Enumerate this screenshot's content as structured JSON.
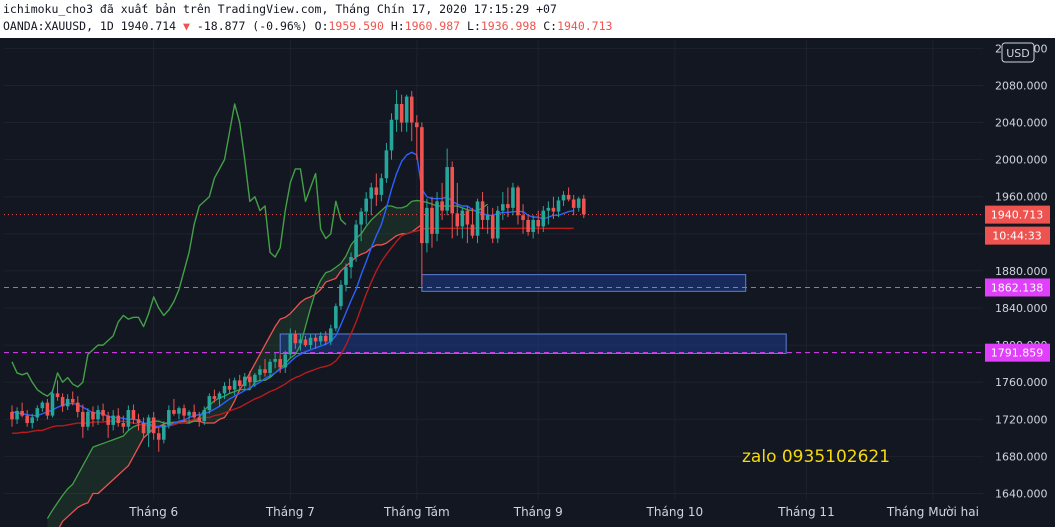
{
  "header": {
    "line1": "ichimoku_cho3 đã xuất bản trên TradingView.com, Tháng Chín 17, 2020 17:15:29 +07",
    "symbol": "OANDA:XAUUSD, 1D",
    "last": "1940.714",
    "change": "-18.877 (-0.96%)",
    "o_label": "O:",
    "o_val": "1959.590",
    "h_label": "H:",
    "h_val": "1960.987",
    "l_label": "L:",
    "l_val": "1936.998",
    "c_label": "C:",
    "c_val": "1940.713"
  },
  "currency_button": "USD",
  "price_tag": "1940.713",
  "countdown_tag": "10:44:33",
  "level_tags": [
    "1862.138",
    "1791.859"
  ],
  "watermark": "zalo 0935102621",
  "colors": {
    "background": "#131722",
    "up": "#26a69a",
    "down": "#ef5350",
    "tenkan": "#2962ff",
    "kijun": "#b71c1c",
    "chikou": "#43a047",
    "span_a": "#43a047",
    "span_b": "#ef5350",
    "zone_fill": "#1e3a8a",
    "zone_border": "#5b7fd6",
    "level_line": "#e040fb"
  },
  "chart_data": {
    "type": "candlestick",
    "symbol": "OANDA:XAUUSD",
    "interval": "1D",
    "y_ticks": [
      "1640.000",
      "1680.000",
      "1720.000",
      "1760.000",
      "1800.000",
      "1840.000",
      "1880.000",
      "1920.000",
      "1960.000",
      "2000.000",
      "2040.000",
      "2080.000",
      "2120.000"
    ],
    "y_range": [
      1633,
      2129
    ],
    "x_labels": [
      "Tháng 6",
      "Tháng 7",
      "Tháng Tám",
      "Tháng 9",
      "Tháng 10",
      "Tháng 11",
      "Tháng Mười hai"
    ],
    "x_label_index": [
      28,
      55,
      80,
      104,
      131,
      157,
      182
    ],
    "candles_ohlc": [
      [
        1728,
        1735,
        1712,
        1720
      ],
      [
        1720,
        1733,
        1715,
        1729
      ],
      [
        1729,
        1738,
        1722,
        1724
      ],
      [
        1724,
        1730,
        1712,
        1716
      ],
      [
        1716,
        1726,
        1710,
        1722
      ],
      [
        1722,
        1735,
        1718,
        1732
      ],
      [
        1732,
        1740,
        1728,
        1738
      ],
      [
        1738,
        1742,
        1720,
        1724
      ],
      [
        1724,
        1752,
        1722,
        1748
      ],
      [
        1748,
        1762,
        1740,
        1744
      ],
      [
        1744,
        1748,
        1728,
        1734
      ],
      [
        1734,
        1747,
        1730,
        1742
      ],
      [
        1742,
        1750,
        1735,
        1738
      ],
      [
        1738,
        1745,
        1722,
        1728
      ],
      [
        1728,
        1736,
        1700,
        1712
      ],
      [
        1712,
        1732,
        1708,
        1728
      ],
      [
        1728,
        1734,
        1712,
        1720
      ],
      [
        1720,
        1735,
        1714,
        1730
      ],
      [
        1730,
        1737,
        1718,
        1724
      ],
      [
        1724,
        1728,
        1700,
        1714
      ],
      [
        1714,
        1730,
        1708,
        1724
      ],
      [
        1724,
        1732,
        1712,
        1716
      ],
      [
        1716,
        1724,
        1705,
        1712
      ],
      [
        1712,
        1735,
        1708,
        1730
      ],
      [
        1730,
        1736,
        1715,
        1720
      ],
      [
        1720,
        1726,
        1708,
        1716
      ],
      [
        1716,
        1722,
        1700,
        1705
      ],
      [
        1705,
        1725,
        1690,
        1722
      ],
      [
        1722,
        1728,
        1698,
        1705
      ],
      [
        1705,
        1712,
        1685,
        1698
      ],
      [
        1698,
        1718,
        1694,
        1714
      ],
      [
        1714,
        1735,
        1710,
        1730
      ],
      [
        1730,
        1742,
        1724,
        1726
      ],
      [
        1726,
        1734,
        1720,
        1732
      ],
      [
        1732,
        1736,
        1718,
        1724
      ],
      [
        1724,
        1730,
        1715,
        1728
      ],
      [
        1728,
        1736,
        1720,
        1722
      ],
      [
        1722,
        1728,
        1712,
        1718
      ],
      [
        1718,
        1734,
        1714,
        1730
      ],
      [
        1730,
        1748,
        1726,
        1745
      ],
      [
        1745,
        1752,
        1738,
        1742
      ],
      [
        1742,
        1750,
        1734,
        1748
      ],
      [
        1748,
        1760,
        1742,
        1756
      ],
      [
        1756,
        1764,
        1748,
        1752
      ],
      [
        1752,
        1765,
        1746,
        1762
      ],
      [
        1762,
        1768,
        1750,
        1756
      ],
      [
        1756,
        1770,
        1752,
        1766
      ],
      [
        1766,
        1772,
        1755,
        1760
      ],
      [
        1760,
        1770,
        1755,
        1768
      ],
      [
        1768,
        1778,
        1762,
        1774
      ],
      [
        1774,
        1785,
        1766,
        1770
      ],
      [
        1770,
        1785,
        1765,
        1782
      ],
      [
        1782,
        1792,
        1775,
        1785
      ],
      [
        1785,
        1790,
        1770,
        1776
      ],
      [
        1776,
        1794,
        1770,
        1790
      ],
      [
        1790,
        1818,
        1786,
        1812
      ],
      [
        1812,
        1816,
        1796,
        1802
      ],
      [
        1802,
        1812,
        1794,
        1806
      ],
      [
        1806,
        1810,
        1798,
        1800
      ],
      [
        1800,
        1812,
        1796,
        1808
      ],
      [
        1808,
        1812,
        1796,
        1804
      ],
      [
        1804,
        1814,
        1800,
        1810
      ],
      [
        1810,
        1815,
        1800,
        1804
      ],
      [
        1804,
        1822,
        1800,
        1818
      ],
      [
        1818,
        1845,
        1815,
        1842
      ],
      [
        1842,
        1870,
        1838,
        1865
      ],
      [
        1865,
        1888,
        1858,
        1884
      ],
      [
        1884,
        1900,
        1872,
        1895
      ],
      [
        1895,
        1935,
        1890,
        1930
      ],
      [
        1930,
        1948,
        1912,
        1944
      ],
      [
        1944,
        1965,
        1930,
        1958
      ],
      [
        1958,
        1975,
        1940,
        1970
      ],
      [
        1970,
        1985,
        1950,
        1962
      ],
      [
        1962,
        1985,
        1955,
        1980
      ],
      [
        1980,
        2018,
        1975,
        2010
      ],
      [
        2010,
        2050,
        2000,
        2043
      ],
      [
        2043,
        2075,
        2030,
        2060
      ],
      [
        2060,
        2070,
        2030,
        2040
      ],
      [
        2040,
        2070,
        2030,
        2068
      ],
      [
        2068,
        2074,
        2020,
        2040
      ],
      [
        2040,
        2048,
        2000,
        2035
      ],
      [
        2035,
        2040,
        1865,
        1910
      ],
      [
        1910,
        1958,
        1900,
        1948
      ],
      [
        1948,
        1960,
        1905,
        1920
      ],
      [
        1920,
        1965,
        1912,
        1955
      ],
      [
        1955,
        1975,
        1935,
        1945
      ],
      [
        1945,
        2012,
        1940,
        1992
      ],
      [
        1992,
        1998,
        1915,
        1942
      ],
      [
        1942,
        1975,
        1918,
        1928
      ],
      [
        1928,
        1948,
        1915,
        1945
      ],
      [
        1945,
        1950,
        1910,
        1930
      ],
      [
        1930,
        1948,
        1915,
        1918
      ],
      [
        1918,
        1958,
        1910,
        1955
      ],
      [
        1955,
        1965,
        1925,
        1935
      ],
      [
        1935,
        1950,
        1920,
        1940
      ],
      [
        1940,
        1948,
        1910,
        1915
      ],
      [
        1915,
        1950,
        1910,
        1945
      ],
      [
        1945,
        1965,
        1935,
        1952
      ],
      [
        1952,
        1970,
        1938,
        1948
      ],
      [
        1948,
        1975,
        1940,
        1970
      ],
      [
        1970,
        1972,
        1930,
        1940
      ],
      [
        1940,
        1952,
        1920,
        1935
      ],
      [
        1935,
        1940,
        1918,
        1922
      ],
      [
        1922,
        1940,
        1915,
        1935
      ],
      [
        1935,
        1945,
        1920,
        1928
      ],
      [
        1928,
        1950,
        1922,
        1945
      ],
      [
        1945,
        1955,
        1930,
        1948
      ],
      [
        1948,
        1960,
        1936,
        1944
      ],
      [
        1944,
        1960,
        1938,
        1956
      ],
      [
        1956,
        1966,
        1950,
        1962
      ],
      [
        1962,
        1970,
        1955,
        1957
      ],
      [
        1957,
        1962,
        1940,
        1948
      ],
      [
        1948,
        1960,
        1944,
        1958
      ],
      [
        1958,
        1962,
        1937,
        1941
      ]
    ],
    "tenkan": [
      1728,
      1727,
      1726,
      1725,
      1724,
      1724,
      1726,
      1728,
      1730,
      1733,
      1735,
      1737,
      1737,
      1736,
      1733,
      1730,
      1727,
      1727,
      1726,
      1723,
      1722,
      1722,
      1721,
      1720,
      1720,
      1719,
      1716,
      1715,
      1713,
      1712,
      1712,
      1713,
      1716,
      1718,
      1719,
      1722,
      1724,
      1725,
      1726,
      1728,
      1731,
      1734,
      1738,
      1742,
      1745,
      1748,
      1751,
      1754,
      1757,
      1760,
      1764,
      1767,
      1770,
      1774,
      1777,
      1782,
      1787,
      1790,
      1793,
      1795,
      1797,
      1799,
      1801,
      1804,
      1810,
      1822,
      1835,
      1848,
      1860,
      1876,
      1890,
      1905,
      1918,
      1930,
      1948,
      1968,
      1985,
      1998,
      2005,
      2008,
      2005,
      1968,
      1960,
      1958,
      1958,
      1958,
      1960,
      1955,
      1952,
      1950,
      1950,
      1946,
      1944,
      1942,
      1940,
      1940,
      1942,
      1943,
      1943,
      1944,
      1944,
      1944,
      1940,
      1938,
      1938,
      1936,
      1938,
      1940,
      1940,
      1942,
      1944,
      1945
    ],
    "kijun": [
      1705,
      1705,
      1706,
      1706,
      1707,
      1708,
      1708,
      1710,
      1712,
      1713,
      1713,
      1714,
      1715,
      1716,
      1716,
      1716,
      1717,
      1717,
      1717,
      1718,
      1718,
      1718,
      1718,
      1717,
      1716,
      1715,
      1714,
      1713,
      1712,
      1712,
      1712,
      1713,
      1714,
      1716,
      1716,
      1718,
      1720,
      1721,
      1722,
      1722,
      1724,
      1725,
      1727,
      1729,
      1731,
      1733,
      1736,
      1739,
      1742,
      1744,
      1747,
      1750,
      1752,
      1755,
      1758,
      1762,
      1765,
      1767,
      1770,
      1772,
      1774,
      1776,
      1777,
      1779,
      1783,
      1790,
      1800,
      1812,
      1825,
      1840,
      1855,
      1868,
      1880,
      1890,
      1898,
      1905,
      1912,
      1918,
      1920,
      1922,
      1923,
      1925,
      1926,
      1926,
      1926,
      1926,
      1926,
      1926,
      1926,
      1926,
      1926,
      1926,
      1926,
      1926,
      1926,
      1926,
      1926,
      1926,
      1926,
      1926,
      1926,
      1926,
      1926,
      1926,
      1926,
      1926,
      1926,
      1926,
      1926,
      1926,
      1926,
      1926
    ],
    "chikou": [
      1782,
      1770,
      1768,
      1770,
      1760,
      1752,
      1748,
      1745,
      1750,
      1770,
      1760,
      1765,
      1758,
      1755,
      1760,
      1790,
      1795,
      1800,
      1800,
      1805,
      1810,
      1825,
      1832,
      1828,
      1830,
      1830,
      1820,
      1834,
      1852,
      1840,
      1832,
      1838,
      1847,
      1860,
      1880,
      1900,
      1930,
      1950,
      1955,
      1960,
      1980,
      1990,
      2000,
      2030,
      2060,
      2040,
      2000,
      1955,
      1960,
      1945,
      1950,
      1900,
      1895,
      1905,
      1945,
      1975,
      1990,
      1990,
      1955,
      1970,
      1985,
      1925,
      1915,
      1920,
      1955,
      1935,
      1930
    ],
    "chikou_start_index": 0,
    "span_a": [
      1613,
      1622,
      1630,
      1638,
      1645,
      1650,
      1660,
      1670,
      1680,
      1690,
      1692,
      1694,
      1696,
      1698,
      1700,
      1702,
      1708,
      1712,
      1714,
      1715,
      1716,
      1718,
      1718,
      1716,
      1716,
      1716,
      1716,
      1716,
      1716,
      1718,
      1722,
      1730,
      1735,
      1740,
      1743,
      1745,
      1748,
      1750,
      1752,
      1752,
      1752,
      1760,
      1762,
      1762,
      1765,
      1770,
      1775,
      1780,
      1786,
      1790,
      1800,
      1820,
      1840,
      1858,
      1870,
      1878,
      1880,
      1884,
      1888,
      1896,
      1908,
      1915,
      1920,
      1928,
      1935,
      1940,
      1945,
      1950,
      1950,
      1948,
      1948,
      1950,
      1955,
      1956,
      1955,
      1954,
      1952,
      1950,
      1950,
      1950,
      1950,
      1950,
      1948,
      1946,
      1945,
      1945,
      1948,
      1952
    ],
    "span_b": [
      1580,
      1590,
      1600,
      1610,
      1615,
      1620,
      1625,
      1628,
      1630,
      1640,
      1640,
      1645,
      1650,
      1655,
      1660,
      1665,
      1670,
      1680,
      1690,
      1700,
      1705,
      1710,
      1712,
      1715,
      1716,
      1717,
      1717,
      1718,
      1718,
      1718,
      1718,
      1716,
      1716,
      1716,
      1720,
      1722,
      1730,
      1740,
      1752,
      1760,
      1770,
      1780,
      1790,
      1800,
      1810,
      1820,
      1828,
      1830,
      1834,
      1840,
      1846,
      1850,
      1852,
      1855,
      1860,
      1868,
      1870,
      1872,
      1880,
      1885,
      1890,
      1895,
      1898,
      1900,
      1905,
      1908,
      1908,
      1910,
      1914,
      1918,
      1920,
      1920,
      1922,
      1926,
      1930
    ],
    "span_start_index": 7,
    "current_price": 1940.713,
    "levels": [
      1862.138,
      1791.859
    ],
    "zones": [
      {
        "x_from_index": 81,
        "x_to_index": 145,
        "y_low": 1858,
        "y_high": 1876
      },
      {
        "x_from_index": 53,
        "x_to_index": 153,
        "y_low": 1791,
        "y_high": 1812
      }
    ]
  }
}
